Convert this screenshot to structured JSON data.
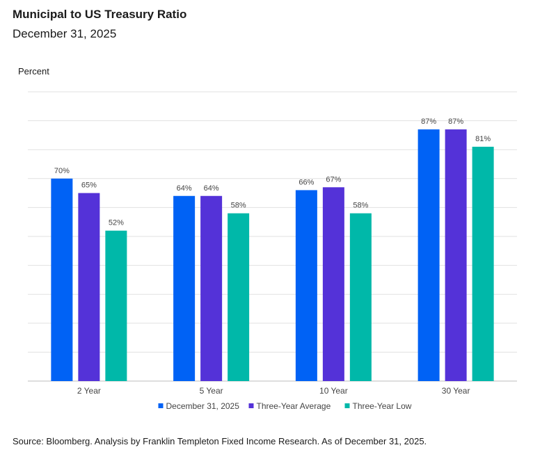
{
  "title": "Municipal to US Treasury Ratio",
  "subtitle": "December 31, 2025",
  "source": "Source: Bloomberg. Analysis by Franklin Templeton Fixed Income Research. As of December 31, 2025.",
  "chart_data": {
    "type": "bar",
    "title": "Municipal to US Treasury Ratio",
    "subtitle": "December 31, 2025",
    "ylabel": "Percent",
    "xlabel": "",
    "ylim": [
      0,
      100
    ],
    "grid": true,
    "legend_position": "bottom",
    "categories": [
      "2 Year",
      "5 Year",
      "10 Year",
      "30 Year"
    ],
    "series": [
      {
        "name": "December 31, 2025",
        "color": "#0062F5",
        "values": [
          70,
          64,
          66,
          87
        ],
        "labels": [
          "70%",
          "64%",
          "66%",
          "87%"
        ]
      },
      {
        "name": "Three-Year Average",
        "color": "#5432D8",
        "values": [
          65,
          64,
          67,
          87
        ],
        "labels": [
          "65%",
          "64%",
          "67%",
          "87%"
        ]
      },
      {
        "name": "Three-Year Low",
        "color": "#00B8A9",
        "values": [
          52,
          58,
          58,
          81
        ],
        "labels": [
          "52%",
          "58%",
          "58%",
          "81%"
        ]
      }
    ]
  }
}
